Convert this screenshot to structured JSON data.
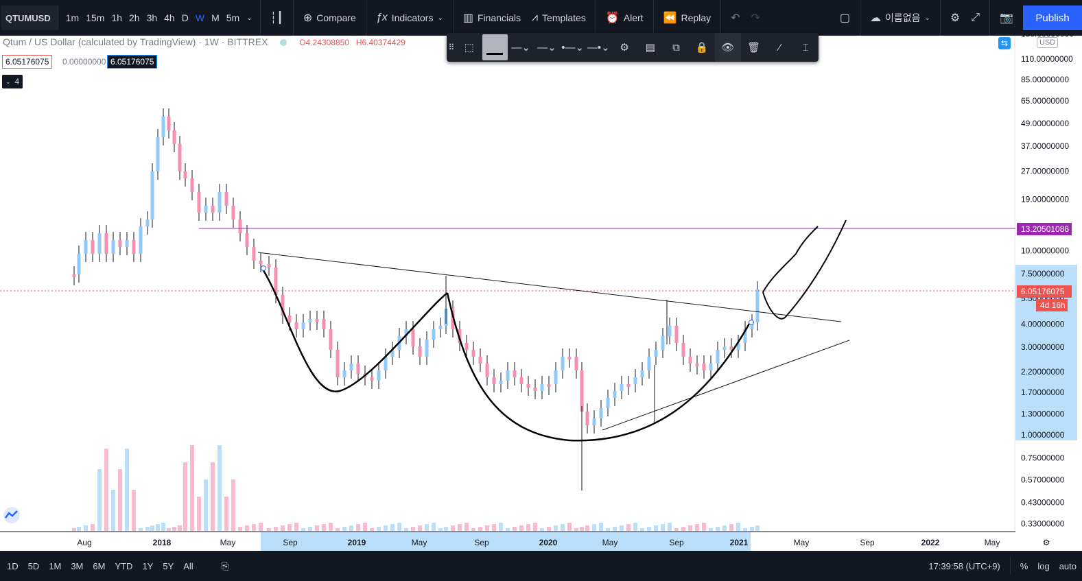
{
  "toolbar": {
    "symbol": "QTUMUSD",
    "intervals": [
      "1m",
      "15m",
      "1h",
      "2h",
      "3h",
      "4h",
      "D",
      "W",
      "M",
      "5m"
    ],
    "active_interval": "W",
    "compare": "Compare",
    "indicators": "Indicators",
    "financials": "Financials",
    "templates": "Templates",
    "alert": "Alert",
    "replay": "Replay",
    "layout_name": "이름없음",
    "publish": "Publish"
  },
  "legend": {
    "title": "Qtum / US Dollar (calculated by TradingView) · 1W · BITTREX",
    "open": "O4.24308850",
    "high": "H6.40374429",
    "values": [
      "6.05176075",
      "0.00000000",
      "6.05176075"
    ],
    "collapsed_count": "4"
  },
  "price_axis": {
    "currency": "USD",
    "labels": [
      "150.00000000",
      "110.00000000",
      "85.00000000",
      "65.00000000",
      "49.00000000",
      "37.00000000",
      "27.00000000",
      "19.00000000",
      "10.00000000",
      "7.50000000",
      "5.50000000",
      "4.00000000",
      "3.00000000",
      "2.20000000",
      "1.70000000",
      "1.30000000",
      "1.00000000",
      "0.75000000",
      "0.57000000",
      "0.43000000",
      "0.33000000"
    ],
    "horizontal_line_price": "13.20501088",
    "current_price": "6.05176075",
    "countdown": "4d 16h"
  },
  "time_axis": {
    "labels": [
      "Aug",
      "2018",
      "May",
      "Sep",
      "2019",
      "May",
      "Sep",
      "2020",
      "May",
      "Sep",
      "2021",
      "May",
      "Sep",
      "2022",
      "May"
    ]
  },
  "bottom": {
    "ranges": [
      "1D",
      "5D",
      "1M",
      "3M",
      "6M",
      "YTD",
      "1Y",
      "5Y",
      "All"
    ],
    "clock": "17:39:58 (UTC+9)",
    "percent": "%",
    "log": "log",
    "auto": "auto"
  },
  "colors": {
    "bg_dark": "#131722",
    "up": "#90caf9",
    "down": "#f48fb1",
    "hline": "#9c27b0",
    "price_badge": "#ef5350",
    "publish": "#2962ff"
  }
}
